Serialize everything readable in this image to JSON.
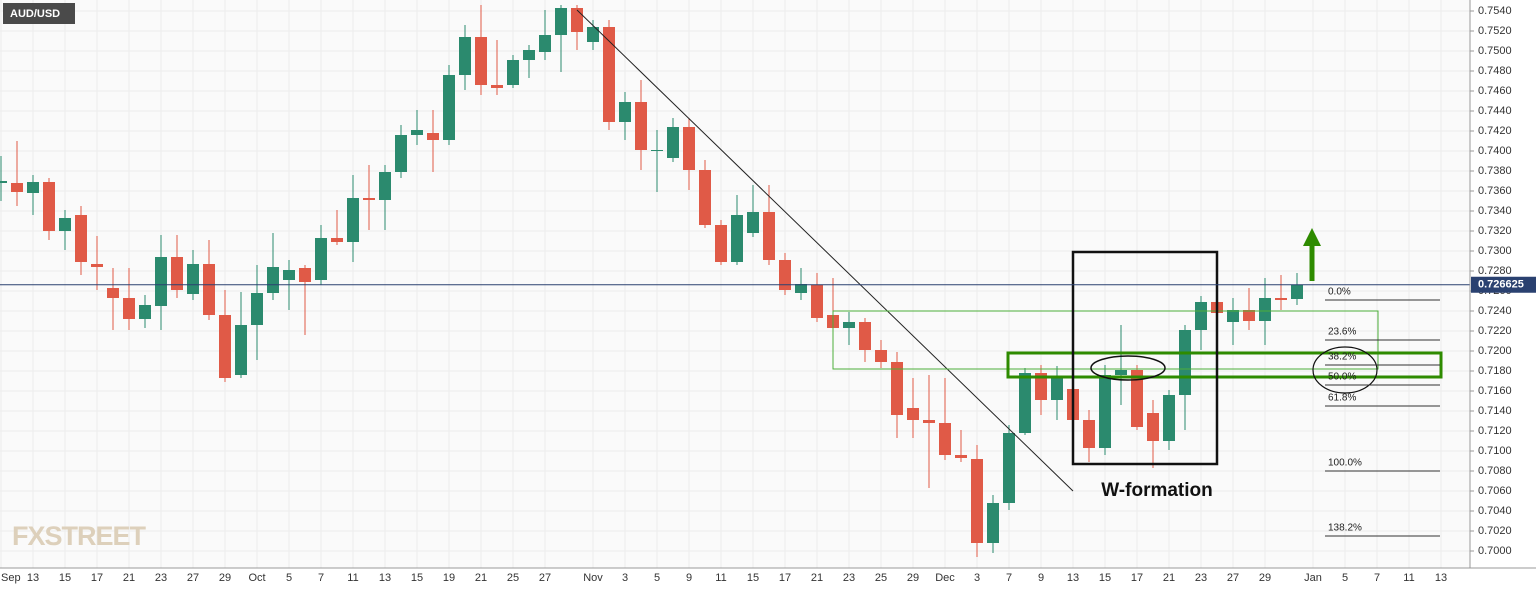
{
  "chart_data": {
    "type": "candlestick",
    "title": "AUD/USD",
    "categories": [
      "Sep",
      null,
      "13",
      null,
      "15",
      null,
      "17",
      null,
      "21",
      null,
      "23",
      null,
      "27",
      null,
      "29",
      null,
      "Oct",
      null,
      "5",
      null,
      "7",
      null,
      "11",
      null,
      "13",
      null,
      "15",
      null,
      "19",
      null,
      "21",
      null,
      "25",
      null,
      "27",
      null,
      null,
      "Nov",
      null,
      "3",
      null,
      "5",
      null,
      "9",
      null,
      "11",
      null,
      "15",
      null,
      "17",
      null,
      "21",
      null,
      "23",
      null,
      "25",
      null,
      "29",
      null,
      "Dec",
      null,
      "3",
      null,
      "7",
      null,
      "9",
      null,
      "13",
      null,
      "15",
      null,
      "17",
      null,
      "21",
      null,
      "23",
      null,
      "27",
      null,
      "29",
      null,
      null,
      "Jan",
      null,
      "5",
      null,
      "7",
      null,
      "11",
      null,
      "13"
    ],
    "open": [
      0.7368,
      0.7368,
      0.7358,
      0.7369,
      0.732,
      0.7336,
      0.7287,
      0.7263,
      0.7253,
      0.7232,
      0.7245,
      0.7294,
      0.7257,
      0.7287,
      0.7236,
      0.7176,
      0.7226,
      0.7258,
      0.7271,
      0.7283,
      0.7271,
      0.7313,
      0.7309,
      0.7353,
      0.7351,
      0.7379,
      0.7416,
      0.7418,
      0.7411,
      0.7476,
      0.7514,
      0.7466,
      0.7466,
      0.7491,
      0.7499,
      0.7516,
      0.7543,
      0.7509,
      0.7524,
      0.7429,
      0.7449,
      0.74,
      0.7393,
      0.7424,
      0.7381,
      0.7326,
      0.7289,
      0.7318,
      0.7339,
      0.7291,
      0.7258,
      0.7266,
      0.7236,
      0.7223,
      0.7229,
      0.7201,
      0.7189,
      0.7143,
      0.7131,
      0.7128,
      0.7096,
      0.7092,
      0.7008,
      0.7048,
      0.7118,
      0.7178,
      0.7151,
      0.7162,
      0.7131,
      0.7103,
      0.7176,
      0.7181,
      0.7138,
      0.711,
      0.7156,
      0.7221,
      0.7249,
      0.7229,
      0.7241,
      0.723,
      0.7253,
      0.7252,
      null,
      null,
      null,
      null,
      null,
      null,
      null,
      null,
      null
    ],
    "high": [
      0.7395,
      0.741,
      0.7376,
      0.7373,
      0.7341,
      0.7345,
      0.7315,
      0.7283,
      0.7283,
      0.7256,
      0.7316,
      0.7316,
      0.7301,
      0.7311,
      0.7261,
      0.7259,
      0.7286,
      0.7318,
      0.7291,
      0.7286,
      0.7326,
      0.7341,
      0.7376,
      0.7386,
      0.7386,
      0.7426,
      0.7441,
      0.7441,
      0.7486,
      0.7526,
      0.7546,
      0.7511,
      0.7496,
      0.7506,
      0.7541,
      0.7546,
      0.7546,
      0.7531,
      0.7531,
      0.7459,
      0.7471,
      0.7421,
      0.7433,
      0.7433,
      0.7391,
      0.7331,
      0.7356,
      0.7366,
      0.7366,
      0.7298,
      0.7283,
      0.7278,
      0.7273,
      0.7239,
      0.7233,
      0.7211,
      0.7199,
      0.7173,
      0.7176,
      0.7173,
      0.7121,
      0.7106,
      0.7056,
      0.7126,
      0.7183,
      0.7186,
      0.7185,
      0.7171,
      0.7141,
      0.7186,
      0.7226,
      0.7186,
      0.7151,
      0.7161,
      0.7226,
      0.7255,
      0.7256,
      0.7253,
      0.7263,
      0.7273,
      0.7276,
      0.7278,
      null,
      null,
      null,
      null,
      null,
      null,
      null,
      null,
      null
    ],
    "low": [
      0.735,
      0.7345,
      0.7336,
      0.7311,
      0.7301,
      0.7276,
      0.7261,
      0.7221,
      0.7221,
      0.7223,
      0.7221,
      0.7253,
      0.7251,
      0.7231,
      0.7169,
      0.7173,
      0.7191,
      0.7251,
      0.7241,
      0.7216,
      0.7266,
      0.7306,
      0.7289,
      0.7321,
      0.7321,
      0.7373,
      0.7406,
      0.7379,
      0.7406,
      0.7461,
      0.7456,
      0.7456,
      0.7463,
      0.7473,
      0.7491,
      0.7479,
      0.7501,
      0.7501,
      0.7421,
      0.7411,
      0.7381,
      0.7359,
      0.7389,
      0.7361,
      0.7323,
      0.7286,
      0.7286,
      0.7314,
      0.7286,
      0.7256,
      0.7251,
      0.7229,
      0.7216,
      0.7206,
      0.7189,
      0.7183,
      0.7113,
      0.7113,
      0.7063,
      0.7091,
      0.7089,
      0.6994,
      0.6998,
      0.7041,
      0.7116,
      0.7136,
      0.7131,
      0.7126,
      0.7089,
      0.7096,
      0.7146,
      0.7121,
      0.7083,
      0.7101,
      0.7121,
      0.7201,
      0.7233,
      0.7206,
      0.7221,
      0.7206,
      0.7241,
      0.7246,
      null,
      null,
      null,
      null,
      null,
      null,
      null,
      null,
      null
    ],
    "close": [
      0.737,
      0.7359,
      0.7369,
      0.732,
      0.7333,
      0.7289,
      0.7284,
      0.7253,
      0.7232,
      0.7246,
      0.7294,
      0.7261,
      0.7287,
      0.7236,
      0.7173,
      0.7226,
      0.7258,
      0.7284,
      0.7281,
      0.7269,
      0.7313,
      0.7309,
      0.7353,
      0.7351,
      0.7379,
      0.7416,
      0.7421,
      0.7411,
      0.7476,
      0.7514,
      0.7466,
      0.7463,
      0.7491,
      0.7501,
      0.7516,
      0.7543,
      0.7519,
      0.7524,
      0.7429,
      0.7449,
      0.7401,
      0.7401,
      0.7424,
      0.7381,
      0.7326,
      0.7289,
      0.7336,
      0.7339,
      0.7291,
      0.7261,
      0.7267,
      0.7233,
      0.7223,
      0.7229,
      0.7201,
      0.7189,
      0.7136,
      0.7131,
      0.7128,
      0.7096,
      0.7093,
      0.7008,
      0.7048,
      0.7118,
      0.7178,
      0.7151,
      0.7175,
      0.7131,
      0.7103,
      0.7176,
      0.7181,
      0.7124,
      0.711,
      0.7156,
      0.7221,
      0.7249,
      0.7238,
      0.7241,
      0.723,
      0.7253,
      0.7251,
      0.7266,
      null,
      null,
      null,
      null,
      null,
      null,
      null,
      null,
      null
    ],
    "up_color": "#2b8a6e",
    "down_color": "#e05a47",
    "ylim": [
      0.6983,
      0.7551
    ],
    "yticks": [
      {
        "value": 0.7,
        "label": "0.7000"
      },
      {
        "value": 0.702,
        "label": "0.7020"
      },
      {
        "value": 0.704,
        "label": "0.7040"
      },
      {
        "value": 0.706,
        "label": "0.7060"
      },
      {
        "value": 0.708,
        "label": "0.7080"
      },
      {
        "value": 0.71,
        "label": "0.7100"
      },
      {
        "value": 0.712,
        "label": "0.7120"
      },
      {
        "value": 0.714,
        "label": "0.7140"
      },
      {
        "value": 0.716,
        "label": "0.7160"
      },
      {
        "value": 0.718,
        "label": "0.7180"
      },
      {
        "value": 0.72,
        "label": "0.7200"
      },
      {
        "value": 0.722,
        "label": "0.7220"
      },
      {
        "value": 0.724,
        "label": "0.7240"
      },
      {
        "value": 0.726,
        "label": "0.7260"
      },
      {
        "value": 0.728,
        "label": "0.7280"
      },
      {
        "value": 0.73,
        "label": "0.7300"
      },
      {
        "value": 0.732,
        "label": "0.7320"
      },
      {
        "value": 0.734,
        "label": "0.7340"
      },
      {
        "value": 0.736,
        "label": "0.7360"
      },
      {
        "value": 0.738,
        "label": "0.7380"
      },
      {
        "value": 0.74,
        "label": "0.7400"
      },
      {
        "value": 0.742,
        "label": "0.7420"
      },
      {
        "value": 0.744,
        "label": "0.7440"
      },
      {
        "value": 0.746,
        "label": "0.7460"
      },
      {
        "value": 0.748,
        "label": "0.7480"
      },
      {
        "value": 0.75,
        "label": "0.7500"
      },
      {
        "value": 0.752,
        "label": "0.7520"
      },
      {
        "value": 0.754,
        "label": "0.7540"
      }
    ],
    "grid": true,
    "last_price": 0.726625,
    "fib_levels": [
      {
        "label": "0.0%",
        "value": 0.7251
      },
      {
        "label": "23.6%",
        "value": 0.7211
      },
      {
        "label": "38.2%",
        "value": 0.7186
      },
      {
        "label": "50.0%",
        "value": 0.7166
      },
      {
        "label": "61.8%",
        "value": 0.7145
      },
      {
        "label": "100.0%",
        "value": 0.708
      },
      {
        "label": "138.2%",
        "value": 0.7015
      }
    ],
    "annotation": "W-formation",
    "watermark": "FXSTREET"
  }
}
